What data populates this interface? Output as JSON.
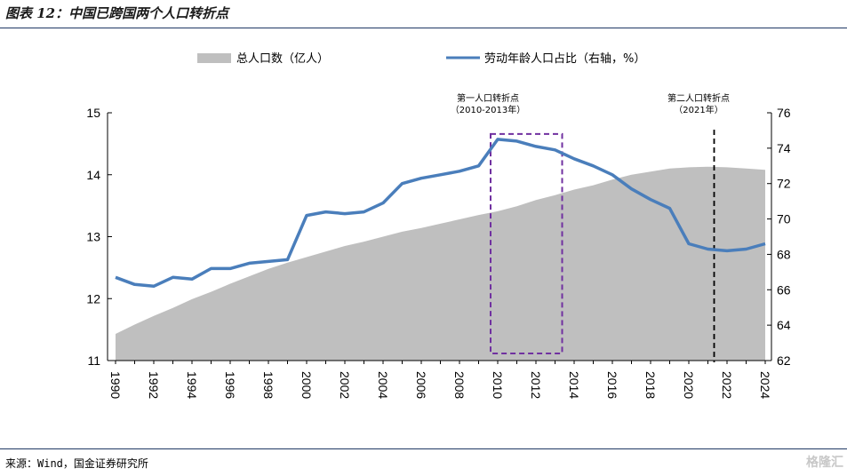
{
  "figure": {
    "title": "图表 12：中国已跨国两个人口转折点",
    "source": "来源：Wind，国金证券研究所",
    "watermark": "格隆汇"
  },
  "chart_data": {
    "type": "area+line",
    "x_years": [
      1990,
      1991,
      1992,
      1993,
      1994,
      1995,
      1996,
      1997,
      1998,
      1999,
      2000,
      2001,
      2002,
      2003,
      2004,
      2005,
      2006,
      2007,
      2008,
      2009,
      2010,
      2011,
      2012,
      2013,
      2014,
      2015,
      2016,
      2017,
      2018,
      2019,
      2020,
      2021,
      2022,
      2023,
      2024
    ],
    "x_tick_labels": [
      "1990",
      "1992",
      "1994",
      "1996",
      "1998",
      "2000",
      "2002",
      "2004",
      "2006",
      "2008",
      "2010",
      "2012",
      "2014",
      "2016",
      "2018",
      "2020",
      "2022",
      "2024"
    ],
    "series": [
      {
        "name": "总人口数（亿人）",
        "kind": "area",
        "axis": "left",
        "color": "#bfbfbf",
        "values": [
          11.43,
          11.58,
          11.72,
          11.85,
          11.99,
          12.11,
          12.24,
          12.36,
          12.48,
          12.58,
          12.67,
          12.76,
          12.85,
          12.92,
          13.0,
          13.08,
          13.14,
          13.21,
          13.28,
          13.35,
          13.41,
          13.49,
          13.59,
          13.67,
          13.76,
          13.83,
          13.92,
          14.0,
          14.05,
          14.1,
          14.12,
          14.13,
          14.12,
          14.1,
          14.08
        ]
      },
      {
        "name": "劳动年龄人口占比（右轴，%）",
        "kind": "line",
        "axis": "right",
        "color": "#4a7ebb",
        "values": [
          66.7,
          66.3,
          66.2,
          66.7,
          66.6,
          67.2,
          67.2,
          67.5,
          67.6,
          67.7,
          70.2,
          70.4,
          70.3,
          70.4,
          70.9,
          72.0,
          72.3,
          72.5,
          72.7,
          73.0,
          74.5,
          74.4,
          74.1,
          73.9,
          73.4,
          73.0,
          72.5,
          71.7,
          71.1,
          70.6,
          68.6,
          68.3,
          68.2,
          68.3,
          68.6
        ]
      }
    ],
    "y_left": {
      "range": [
        11,
        15
      ],
      "ticks": [
        "11",
        "12",
        "13",
        "14",
        "15"
      ]
    },
    "y_right": {
      "range": [
        62,
        76
      ],
      "ticks": [
        "62",
        "64",
        "66",
        "68",
        "70",
        "72",
        "74",
        "76"
      ]
    },
    "annotations": [
      {
        "line1": "第一人口转折点",
        "line2": "（2010-2013年）",
        "x_start": 2010,
        "x_end": 2013,
        "box_top": 74.8,
        "box_bottom": 62.4,
        "color": "#7030a0"
      },
      {
        "line1": "第二人口转折点",
        "line2": "（2021年）",
        "x": 2021,
        "color": "#000000"
      }
    ],
    "legend": {
      "position": "top"
    }
  }
}
